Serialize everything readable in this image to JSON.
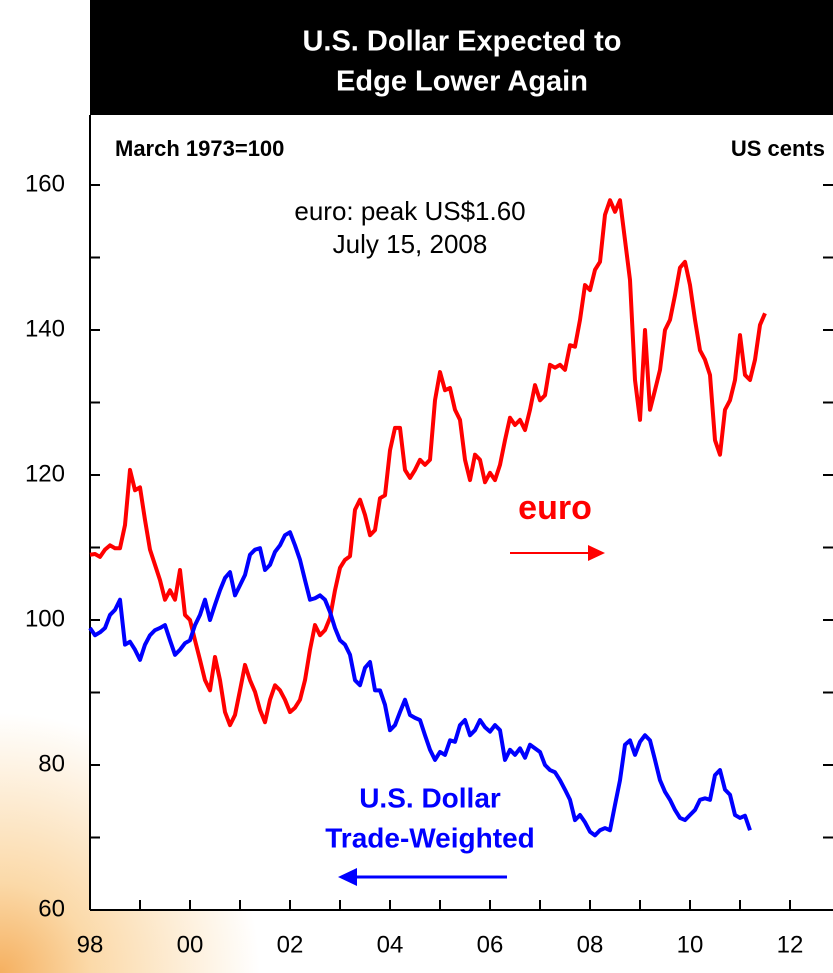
{
  "chart_data": {
    "type": "line",
    "title": [
      "U.S. Dollar Expected to",
      "Edge Lower Again"
    ],
    "ylabel": "March 1973=100",
    "y2label": "US cents",
    "annotations": [
      "euro: peak US$1.60",
      "July 15, 2008"
    ],
    "series_labels": [
      [
        "euro"
      ],
      [
        "U.S. Dollar",
        "Trade-Weighted"
      ]
    ],
    "xlim": [
      1998,
      2012.8
    ],
    "xticks": [
      {
        "value": 1998,
        "label": "98"
      },
      {
        "value": 2000,
        "label": "00"
      },
      {
        "value": 2002,
        "label": "02"
      },
      {
        "value": 2004,
        "label": "04"
      },
      {
        "value": 2006,
        "label": "06"
      },
      {
        "value": 2008,
        "label": "08"
      },
      {
        "value": 2010,
        "label": "10"
      },
      {
        "value": 2012,
        "label": "12"
      }
    ],
    "xticks_minor": [
      1999,
      2001,
      2003,
      2005,
      2007,
      2009,
      2011
    ],
    "ylim": [
      60,
      160
    ],
    "yticks": [
      60,
      80,
      100,
      120,
      140,
      160
    ],
    "yticks_minor": [
      70,
      90,
      110,
      130,
      150
    ],
    "x": [
      1998.0,
      1998.1,
      1998.2,
      1998.3,
      1998.4,
      1998.5,
      1998.6,
      1998.7,
      1998.8,
      1998.9,
      1999.0,
      1999.1,
      1999.2,
      1999.3,
      1999.4,
      1999.5,
      1999.6,
      1999.7,
      1999.8,
      1999.9,
      2000.0,
      2000.1,
      2000.2,
      2000.3,
      2000.4,
      2000.5,
      2000.6,
      2000.7,
      2000.8,
      2000.9,
      2001.0,
      2001.1,
      2001.2,
      2001.3,
      2001.4,
      2001.5,
      2001.6,
      2001.7,
      2001.8,
      2001.9,
      2002.0,
      2002.1,
      2002.2,
      2002.3,
      2002.4,
      2002.5,
      2002.6,
      2002.7,
      2002.8,
      2002.9,
      2003.0,
      2003.1,
      2003.2,
      2003.3,
      2003.4,
      2003.5,
      2003.6,
      2003.7,
      2003.8,
      2003.9,
      2004.0,
      2004.1,
      2004.2,
      2004.3,
      2004.4,
      2004.5,
      2004.6,
      2004.7,
      2004.8,
      2004.9,
      2005.0,
      2005.1,
      2005.2,
      2005.3,
      2005.4,
      2005.5,
      2005.6,
      2005.7,
      2005.8,
      2005.9,
      2006.0,
      2006.1,
      2006.2,
      2006.3,
      2006.4,
      2006.5,
      2006.6,
      2006.7,
      2006.8,
      2006.9,
      2007.0,
      2007.1,
      2007.2,
      2007.3,
      2007.4,
      2007.5,
      2007.6,
      2007.7,
      2007.8,
      2007.9,
      2008.0,
      2008.1,
      2008.2,
      2008.3,
      2008.4,
      2008.5,
      2008.6,
      2008.7,
      2008.8,
      2008.9,
      2009.0,
      2009.1,
      2009.2,
      2009.3,
      2009.4,
      2009.5,
      2009.6,
      2009.7,
      2009.8,
      2009.9,
      2010.0,
      2010.1,
      2010.2,
      2010.3,
      2010.4,
      2010.5,
      2010.6,
      2010.7,
      2010.8,
      2010.9,
      2011.0,
      2011.1,
      2011.2,
      2011.3,
      2011.4,
      2011.5
    ],
    "series": [
      {
        "name": "euro",
        "color": "#ff0000",
        "values": [
          109.0,
          109.1,
          108.7,
          109.7,
          110.3,
          109.9,
          109.9,
          113.1,
          120.7,
          117.9,
          118.3,
          113.8,
          109.7,
          107.6,
          105.5,
          102.8,
          104.1,
          102.8,
          106.9,
          100.7,
          100.0,
          97.2,
          94.5,
          91.7,
          90.3,
          94.9,
          91.7,
          87.3,
          85.5,
          86.9,
          90.3,
          93.8,
          91.7,
          90.1,
          87.6,
          85.9,
          89.0,
          91.0,
          90.3,
          89.0,
          87.3,
          87.9,
          89.0,
          91.7,
          95.9,
          99.3,
          97.9,
          98.6,
          100.3,
          104.1,
          107.2,
          108.3,
          108.8,
          115.2,
          116.6,
          114.5,
          111.7,
          112.4,
          116.8,
          117.2,
          123.4,
          126.5,
          126.5,
          120.7,
          119.6,
          120.7,
          122.1,
          121.4,
          122.1,
          130.3,
          134.2,
          131.7,
          132.0,
          129.0,
          127.6,
          122.1,
          119.3,
          122.8,
          122.1,
          119.0,
          120.3,
          119.3,
          121.4,
          124.8,
          127.9,
          126.9,
          127.6,
          126.2,
          129.0,
          132.4,
          130.3,
          131.0,
          135.2,
          134.8,
          135.2,
          134.5,
          137.9,
          137.7,
          141.4,
          146.2,
          145.5,
          148.3,
          149.4,
          155.9,
          157.9,
          156.3,
          157.9,
          152.4,
          146.9,
          133.1,
          127.6,
          140.0,
          129.0,
          131.7,
          134.5,
          140.0,
          141.4,
          144.8,
          148.6,
          149.4,
          146.2,
          141.4,
          137.2,
          135.9,
          133.8,
          124.8,
          122.8,
          129.0,
          130.3,
          133.1,
          139.3,
          133.8,
          133.1,
          135.9,
          140.7,
          142.3
        ]
      },
      {
        "name": "U.S. Dollar Trade-Weighted",
        "color": "#0000ff",
        "values": [
          98.9,
          97.9,
          98.3,
          98.9,
          100.7,
          101.4,
          102.8,
          96.6,
          97.0,
          95.9,
          94.5,
          96.6,
          97.9,
          98.6,
          98.9,
          99.3,
          97.2,
          95.2,
          95.9,
          96.8,
          97.2,
          99.3,
          100.7,
          102.8,
          100.0,
          102.1,
          104.1,
          105.8,
          106.6,
          103.4,
          104.8,
          106.2,
          109.0,
          109.7,
          109.9,
          106.9,
          107.6,
          109.4,
          110.3,
          111.7,
          112.1,
          110.3,
          108.3,
          105.5,
          102.8,
          103.0,
          103.4,
          102.8,
          101.1,
          98.9,
          97.2,
          96.6,
          95.2,
          91.7,
          91.0,
          93.4,
          94.2,
          90.3,
          90.3,
          88.3,
          84.8,
          85.5,
          87.3,
          89.0,
          86.9,
          86.5,
          86.2,
          84.1,
          82.1,
          80.7,
          81.8,
          81.4,
          83.4,
          83.2,
          85.5,
          86.2,
          84.1,
          84.8,
          86.2,
          85.2,
          84.6,
          85.5,
          84.8,
          80.7,
          82.1,
          81.4,
          82.3,
          81.0,
          82.8,
          82.3,
          81.8,
          80.0,
          79.3,
          79.0,
          77.9,
          76.6,
          75.2,
          72.4,
          73.1,
          72.1,
          70.8,
          70.3,
          71.0,
          71.3,
          71.0,
          74.5,
          77.9,
          82.8,
          83.4,
          81.4,
          83.2,
          84.1,
          83.4,
          80.7,
          77.9,
          76.3,
          75.2,
          73.8,
          72.7,
          72.4,
          73.1,
          73.8,
          75.2,
          75.4,
          75.2,
          78.6,
          79.3,
          76.6,
          75.9,
          73.1,
          72.7,
          73.0,
          71.0,
          null,
          null,
          null
        ]
      }
    ]
  }
}
